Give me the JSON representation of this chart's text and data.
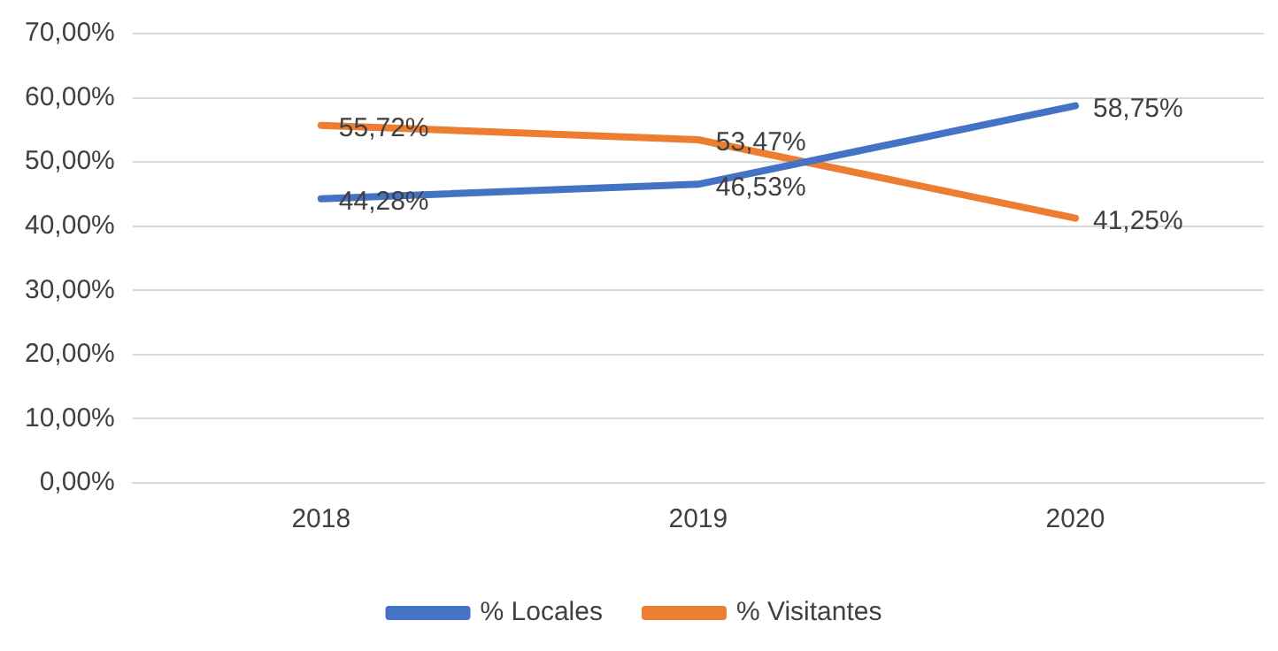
{
  "chart_data": {
    "type": "line",
    "categories": [
      "2018",
      "2019",
      "2020"
    ],
    "series": [
      {
        "name": "% Locales",
        "color": "#4472c4",
        "values": [
          44.28,
          46.53,
          58.75
        ],
        "value_labels": [
          "44,28%",
          "46,53%",
          "58,75%"
        ]
      },
      {
        "name": "% Visitantes",
        "color": "#ed7d31",
        "values": [
          55.72,
          53.47,
          41.25
        ],
        "value_labels": [
          "55,72%",
          "53,47%",
          "41,25%"
        ]
      }
    ],
    "ylim": [
      0,
      70
    ],
    "yticks": [
      {
        "value": 0,
        "label": "0,00%"
      },
      {
        "value": 10,
        "label": "10,00%"
      },
      {
        "value": 20,
        "label": "20,00%"
      },
      {
        "value": 30,
        "label": "30,00%"
      },
      {
        "value": 40,
        "label": "40,00%"
      },
      {
        "value": 50,
        "label": "50,00%"
      },
      {
        "value": 60,
        "label": "60,00%"
      },
      {
        "value": 70,
        "label": "70,00%"
      }
    ],
    "grid": "y",
    "legend": "bottom",
    "marker": "none"
  }
}
